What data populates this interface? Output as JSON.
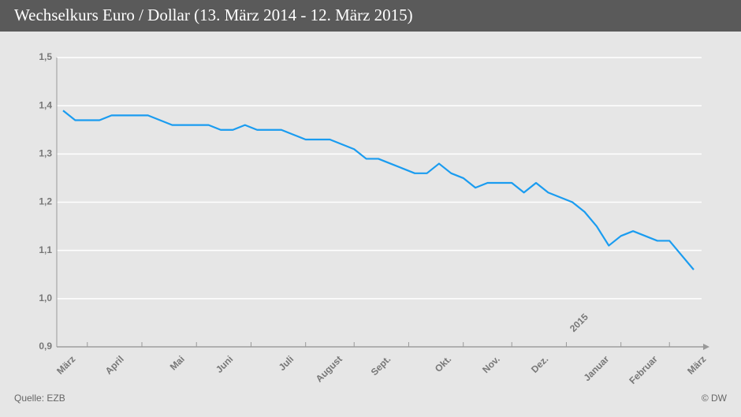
{
  "chart_data": {
    "type": "line",
    "title": "Wechselkurs Euro / Dollar (13. März 2014 - 12. März 2015)",
    "categories": [
      "März",
      null,
      null,
      null,
      "April",
      null,
      null,
      null,
      null,
      "Mai",
      null,
      null,
      null,
      "Juni",
      null,
      null,
      null,
      null,
      "Juli",
      null,
      null,
      null,
      "August",
      null,
      null,
      null,
      "Sept.",
      null,
      null,
      null,
      null,
      "Okt.",
      null,
      null,
      null,
      "Nov.",
      null,
      null,
      null,
      "Dez.",
      null,
      null,
      null,
      null,
      "Januar",
      null,
      null,
      null,
      "Februar",
      null,
      null,
      null,
      "März"
    ],
    "series": [
      {
        "color": "#1a9cf0",
        "values": [
          1.39,
          1.37,
          1.37,
          1.37,
          1.38,
          1.38,
          1.38,
          1.38,
          1.37,
          1.36,
          1.36,
          1.36,
          1.36,
          1.35,
          1.35,
          1.36,
          1.35,
          1.35,
          1.35,
          1.34,
          1.33,
          1.33,
          1.33,
          1.32,
          1.31,
          1.29,
          1.29,
          1.28,
          1.27,
          1.26,
          1.26,
          1.28,
          1.26,
          1.25,
          1.23,
          1.24,
          1.24,
          1.24,
          1.22,
          1.24,
          1.22,
          1.21,
          1.2,
          1.18,
          1.15,
          1.11,
          1.13,
          1.14,
          1.13,
          1.12,
          1.12,
          1.09,
          1.06
        ]
      }
    ],
    "ylim": [
      0.9,
      1.5
    ],
    "yticks": [
      {
        "value": 0.9,
        "label": "0,9"
      },
      {
        "value": 1.0,
        "label": "1,0"
      },
      {
        "value": 1.1,
        "label": "1,1"
      },
      {
        "value": 1.2,
        "label": "1,2"
      },
      {
        "value": 1.3,
        "label": "1,3"
      },
      {
        "value": 1.4,
        "label": "1,4"
      },
      {
        "value": 1.5,
        "label": "1,5"
      }
    ],
    "grid": true,
    "annotation": "2015",
    "source": "Quelle: EZB",
    "credit": "© DW"
  }
}
